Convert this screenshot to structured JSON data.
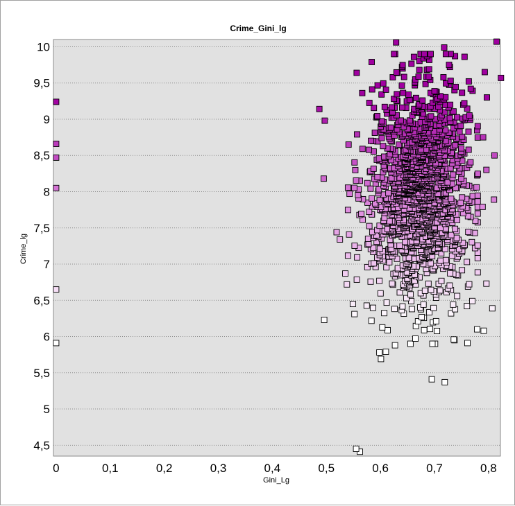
{
  "chart_data": {
    "type": "scatter",
    "title": "Crime_Gini_lg",
    "xlabel": "Gini_Lg",
    "ylabel": "Crime_lg",
    "xlim": [
      -0.005,
      0.822
    ],
    "ylim": [
      4.35,
      10.1
    ],
    "x_ticks": [
      "0",
      "0,1",
      "0,2",
      "0,3",
      "0,4",
      "0,5",
      "0,6",
      "0,7",
      "0,8"
    ],
    "x_tick_values": [
      0,
      0.1,
      0.2,
      0.3,
      0.4,
      0.5,
      0.6,
      0.7,
      0.8
    ],
    "y_ticks": [
      "4,5",
      "5",
      "5,5",
      "6",
      "6,5",
      "7",
      "7,5",
      "8",
      "8,5",
      "9",
      "9,5",
      "10"
    ],
    "y_tick_values": [
      4.5,
      5,
      5.5,
      6,
      6.5,
      7,
      7.5,
      8,
      8.5,
      9,
      9.5,
      10
    ],
    "grid": "horizontal dotted",
    "background": "#e1e1e1",
    "marker": "square",
    "color_scale": {
      "low": "#ffffff",
      "mid": "#e08ee0",
      "high": "#a000a0"
    },
    "points": [
      [
        0,
        9.24
      ],
      [
        0,
        8.66
      ],
      [
        0,
        8.47
      ],
      [
        0,
        8.05
      ],
      [
        0,
        6.65
      ],
      [
        0,
        5.91
      ],
      [
        0.487,
        9.14
      ],
      [
        0.497,
        8.98
      ],
      [
        0.495,
        8.18
      ],
      [
        0.496,
        6.23
      ],
      [
        0.519,
        7.44
      ],
      [
        0.525,
        7.34
      ],
      [
        0.535,
        6.87
      ],
      [
        0.538,
        6.72
      ],
      [
        0.541,
        8.65
      ],
      [
        0.543,
        7.97
      ],
      [
        0.549,
        6.45
      ],
      [
        0.552,
        6.31
      ],
      [
        0.556,
        9.64
      ],
      [
        0.562,
        8.15
      ],
      [
        0.555,
        4.45
      ],
      [
        0.562,
        4.41
      ],
      [
        0.598,
        5.78
      ],
      [
        0.601,
        5.69
      ],
      [
        0.61,
        5.79
      ],
      [
        0.627,
        5.88
      ],
      [
        0.629,
        10.06
      ],
      [
        0.695,
        5.41
      ],
      [
        0.719,
        5.37
      ],
      [
        0.761,
        5.91
      ],
      [
        0.737,
        5.95
      ],
      [
        0.779,
        6.1
      ],
      [
        0.791,
        6.08
      ],
      [
        0.807,
        6.39
      ],
      [
        0.77,
        6.49
      ],
      [
        0.796,
        6.73
      ],
      [
        0.762,
        6.69
      ],
      [
        0.742,
        6.56
      ],
      [
        0.775,
        7.22
      ],
      [
        0.76,
        7.03
      ],
      [
        0.789,
        7.79
      ],
      [
        0.81,
        7.89
      ],
      [
        0.815,
        10.07
      ],
      [
        0.823,
        9.57
      ],
      [
        0.793,
        9.65
      ],
      [
        0.811,
        8.5
      ],
      [
        0.796,
        8.3
      ],
      [
        0.79,
        8.75
      ],
      [
        0.767,
        9.42
      ],
      [
        0.797,
        9.3
      ],
      [
        0.738,
        9.87
      ],
      [
        0.718,
        9.99
      ],
      [
        0.662,
        9.86
      ],
      [
        0.68,
        9.84
      ],
      [
        0.641,
        9.7
      ],
      [
        0.69,
        9.69
      ],
      [
        0.727,
        9.75
      ]
    ],
    "cluster": {
      "count": 1500,
      "x_mean": 0.67,
      "x_sd": 0.045,
      "y_mean": 8.0,
      "y_sd": 0.75,
      "x_range": [
        0.54,
        0.78
      ],
      "y_range": [
        5.9,
        9.9
      ]
    }
  }
}
